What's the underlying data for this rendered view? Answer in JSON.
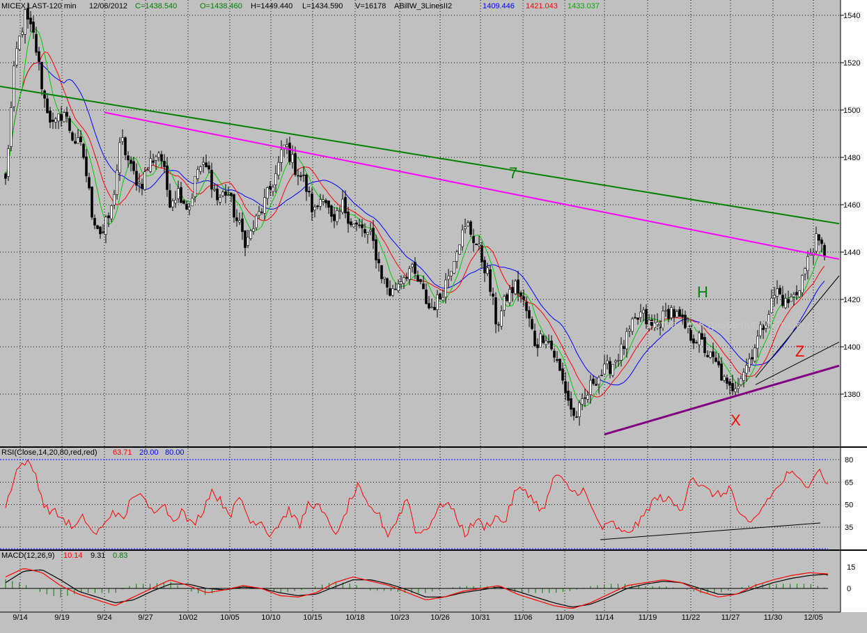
{
  "header": {
    "symbol": "MICEX LAST-120 min",
    "date": "12/06/2012",
    "close": "C=1438.540",
    "open": "O=1438.460",
    "high": "H=1449.440",
    "low": "L=1434.590",
    "volume": "V=16178",
    "indicator": "ABillW_3LinesII2",
    "ind_blue": "1409.446",
    "ind_red": "1421.043",
    "ind_green": "1433.037"
  },
  "rsi_header": {
    "label": "RSI(Close,14,20,80,red,red)",
    "value": "63.71",
    "low": "20.00",
    "high": "80.00"
  },
  "macd_header": {
    "label": "MACD(12,26,9)",
    "macd": "10.14",
    "signal": "9.31",
    "hist": "0.83"
  },
  "annotations": {
    "seven": "7",
    "h": "H",
    "x": "X",
    "z": "Z"
  },
  "watermark": "Портал для трейдеров MyTrader.ru",
  "colors": {
    "bg": "#c0c0c0",
    "grid": "#000000",
    "green_line": "#008000",
    "magenta_line": "#ff00ff",
    "purple_line": "#800080",
    "ma_blue": "#0000ff",
    "ma_red": "#ff0000",
    "ma_green": "#00cc00",
    "rsi": "#ff0000",
    "macd": "#ff0000",
    "signal": "#000000",
    "hist": "#008000"
  },
  "chart_data": [
    {
      "type": "candlestick",
      "title": "MICEX LAST-120 min",
      "x_tick_labels": [
        "9/14",
        "9/19",
        "9/24",
        "9/27",
        "10/02",
        "10/05",
        "10/10",
        "10/15",
        "10/18",
        "10/23",
        "10/26",
        "10/31",
        "11/06",
        "11/09",
        "11/14",
        "11/19",
        "11/22",
        "11/27",
        "11/30",
        "12/05"
      ],
      "y_tick_labels": [
        "1540",
        "1520",
        "1500",
        "1480",
        "1460",
        "1440",
        "1420",
        "1400",
        "1380"
      ],
      "ylim": [
        1363,
        1545
      ],
      "grid": true,
      "price_anchors": [
        1470,
        1522,
        1540,
        1530,
        1505,
        1492,
        1500,
        1488,
        1483,
        1456,
        1447,
        1458,
        1488,
        1475,
        1468,
        1478,
        1483,
        1462,
        1466,
        1458,
        1476,
        1475,
        1462,
        1466,
        1453,
        1444,
        1453,
        1462,
        1472,
        1486,
        1476,
        1470,
        1456,
        1466,
        1450,
        1460,
        1452,
        1449,
        1446,
        1431,
        1422,
        1429,
        1433,
        1426,
        1416,
        1420,
        1431,
        1445,
        1451,
        1442,
        1431,
        1409,
        1421,
        1426,
        1416,
        1401,
        1406,
        1396,
        1383,
        1370,
        1376,
        1386,
        1389,
        1393,
        1399,
        1408,
        1414,
        1408,
        1411,
        1416,
        1411,
        1405,
        1403,
        1396,
        1391,
        1381,
        1386,
        1393,
        1403,
        1413,
        1424,
        1418,
        1422,
        1433,
        1445,
        1440
      ],
      "close": 1438.54,
      "trendlines": [
        {
          "name": "green-resistance",
          "from": [
            "9/13",
            1510
          ],
          "to": [
            "12/06",
            1452
          ]
        },
        {
          "name": "magenta-resistance",
          "from": [
            "9/24",
            1499
          ],
          "to": [
            "12/06",
            1437
          ]
        },
        {
          "name": "purple-support",
          "from": [
            "11/14",
            1363
          ],
          "to": [
            "12/06",
            1392
          ]
        },
        {
          "name": "black-support-1",
          "from": [
            "11/28",
            1384
          ],
          "to": [
            "12/06",
            1402
          ]
        },
        {
          "name": "black-support-2",
          "from": [
            "11/28",
            1387
          ],
          "to": [
            "12/06",
            1430
          ]
        }
      ],
      "indicator_values": {
        "blue": 1409.446,
        "red": 1421.043,
        "green": 1433.037
      }
    },
    {
      "type": "line",
      "title": "RSI(Close,14,20,80,red,red)",
      "y_tick_labels": [
        "80",
        "65",
        "50",
        "35"
      ],
      "levels": [
        20,
        80
      ],
      "last": 63.71,
      "anchors": [
        48,
        72,
        79,
        72,
        48,
        45,
        40,
        34,
        42,
        30,
        35,
        47,
        38,
        58,
        54,
        45,
        52,
        40,
        46,
        36,
        44,
        60,
        52,
        44,
        55,
        38,
        40,
        30,
        38,
        47,
        35,
        52,
        48,
        38,
        30,
        50,
        62,
        48,
        45,
        30,
        40,
        55,
        30,
        34,
        45,
        53,
        42,
        30,
        40,
        35,
        42,
        38,
        58,
        61,
        52,
        45,
        70,
        65,
        58,
        60,
        45,
        34,
        38,
        30,
        34,
        40,
        52,
        55,
        52,
        45,
        70,
        62,
        58,
        56,
        62,
        42,
        36,
        45,
        55,
        62,
        72,
        66,
        64,
        74,
        64
      ]
    },
    {
      "type": "line",
      "title": "MACD(12,26,9)",
      "y_tick_labels": [
        "15",
        "0"
      ],
      "series": [
        {
          "name": "MACD",
          "last": 10.14,
          "anchors": [
            8,
            14,
            11,
            2,
            -4,
            -8,
            -12,
            -6,
            0,
            6,
            2,
            -3,
            -1,
            2,
            0,
            -5,
            -6,
            -3,
            4,
            8,
            5,
            2,
            -3,
            -8,
            -6,
            -2,
            0,
            2,
            -4,
            -8,
            -12,
            -14,
            -10,
            -4,
            2,
            4,
            6,
            4,
            -2,
            -6,
            -4,
            2,
            6,
            9,
            11,
            10
          ]
        },
        {
          "name": "Signal",
          "last": 9.31,
          "anchors": [
            4,
            12,
            13,
            6,
            -2,
            -6,
            -10,
            -8,
            -2,
            3,
            3,
            0,
            -1,
            1,
            0,
            -3,
            -5,
            -4,
            1,
            6,
            6,
            3,
            -1,
            -6,
            -6,
            -3,
            -1,
            1,
            -2,
            -6,
            -10,
            -13,
            -11,
            -6,
            0,
            3,
            5,
            4,
            0,
            -4,
            -4,
            0,
            4,
            7,
            9,
            10
          ]
        },
        {
          "name": "Histogram",
          "last": 0.83
        }
      ]
    }
  ]
}
